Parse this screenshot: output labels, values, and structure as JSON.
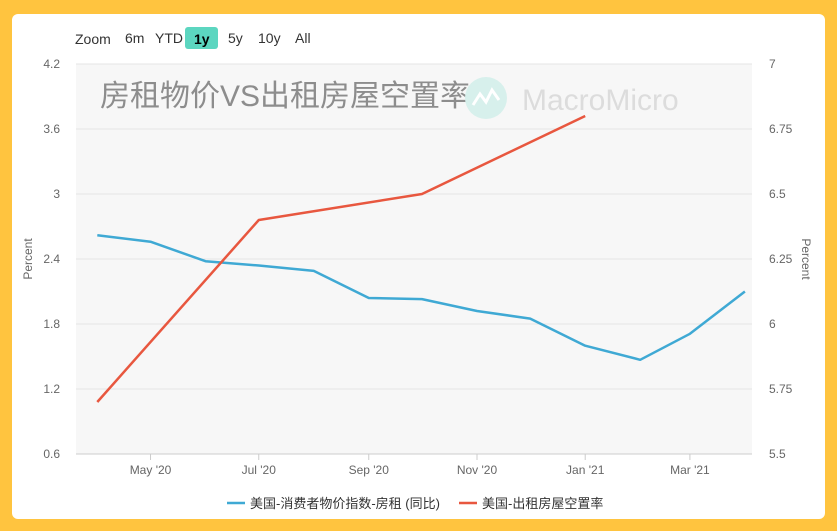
{
  "zoom": {
    "label": "Zoom",
    "options": [
      "6m",
      "YTD",
      "1y",
      "5y",
      "10y",
      "All"
    ],
    "selected": "1y",
    "selected_color": "#5cd6c0"
  },
  "watermark": {
    "brand": "MacroMicro"
  },
  "chart_data": {
    "type": "line",
    "title": "房租物价VS出租房屋空置率",
    "x_ticks": [
      "May '20",
      "Jul '20",
      "Sep '20",
      "Nov '20",
      "Jan '21",
      "Mar '21"
    ],
    "y_left": {
      "label": "Percent",
      "min": 0.6,
      "max": 4.2,
      "ticks": [
        "0.6",
        "1.2",
        "1.8",
        "2.4",
        "3",
        "3.6",
        "4.2"
      ]
    },
    "y_right": {
      "label": "Percent",
      "min": 5.5,
      "max": 7,
      "ticks": [
        "5.5",
        "5.75",
        "6",
        "6.25",
        "6.5",
        "6.75",
        "7"
      ]
    },
    "grid": true,
    "legend_position": "bottom",
    "series": [
      {
        "name": "美国-消费者物价指数-房租 (同比)",
        "axis": "left",
        "color": "#3fa9d4",
        "x": [
          "2020-04-01",
          "2020-05-01",
          "2020-06-01",
          "2020-07-01",
          "2020-08-01",
          "2020-09-01",
          "2020-10-01",
          "2020-11-01",
          "2020-12-01",
          "2021-01-01",
          "2021-02-01",
          "2021-03-01",
          "2021-04-01"
        ],
        "values": [
          2.62,
          2.56,
          2.38,
          2.34,
          2.29,
          2.04,
          2.03,
          1.92,
          1.85,
          1.6,
          1.47,
          1.71,
          2.1
        ]
      },
      {
        "name": "美国-出租房屋空置率",
        "axis": "right",
        "color": "#e8573f",
        "x": [
          "2020-04-01",
          "2020-07-01",
          "2020-10-01",
          "2021-01-01"
        ],
        "values": [
          5.7,
          6.4,
          6.5,
          6.8
        ]
      }
    ]
  }
}
